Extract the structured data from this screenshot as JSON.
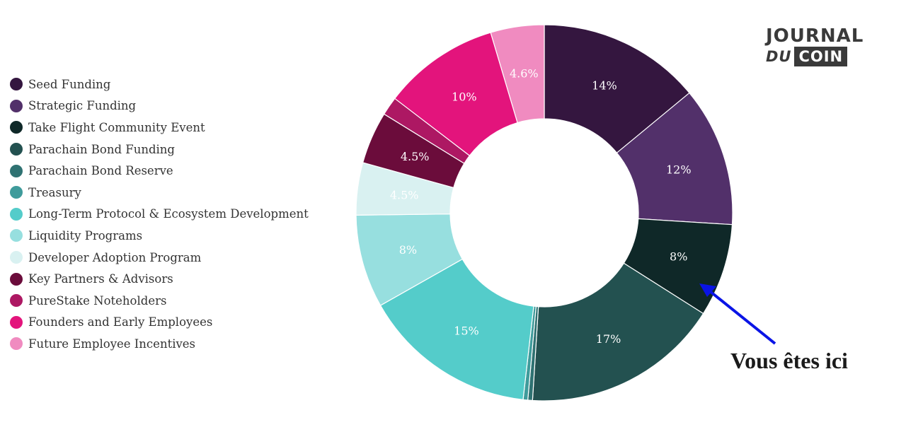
{
  "chart_data": {
    "type": "pie",
    "donut": true,
    "title": "",
    "legend_position": "left",
    "slices": [
      {
        "name": "Seed Funding",
        "value": 14,
        "label": "14%",
        "color": "#34163f"
      },
      {
        "name": "Strategic Funding",
        "value": 12,
        "label": "12%",
        "color": "#52306a"
      },
      {
        "name": "Take Flight Community Event",
        "value": 8,
        "label": "8%",
        "color": "#0f2828"
      },
      {
        "name": "Parachain Bond Funding",
        "value": 17,
        "label": "17%",
        "color": "#235150"
      },
      {
        "name": "Parachain Bond Reserve",
        "value": 0.4,
        "label": "",
        "color": "#2f7272"
      },
      {
        "name": "Treasury",
        "value": 0.4,
        "label": "",
        "color": "#3f9b9b"
      },
      {
        "name": "Long-Term Protocol & Ecosystem Development",
        "value": 15,
        "label": "15%",
        "color": "#54ccca"
      },
      {
        "name": "Liquidity Programs",
        "value": 8,
        "label": "8%",
        "color": "#97dfdf"
      },
      {
        "name": "Developer Adoption Program",
        "value": 4.5,
        "label": "4.5%",
        "color": "#d9f1f1"
      },
      {
        "name": "Key Partners & Advisors",
        "value": 4.5,
        "label": "4.5%",
        "color": "#6b0c3b"
      },
      {
        "name": "PureStake Noteholders",
        "value": 1.6,
        "label": "",
        "color": "#ad1863"
      },
      {
        "name": "Founders and Early Employees",
        "value": 10,
        "label": "10%",
        "color": "#e3147c"
      },
      {
        "name": "Future Employee Incentives",
        "value": 4.6,
        "label": "4.6%",
        "color": "#f08bc0"
      }
    ]
  },
  "annotation": {
    "text": "Vous êtes ici",
    "target": "Take Flight Community Event",
    "arrow_color": "#0a14e6"
  },
  "logo": {
    "line1": "JOURNAL",
    "line2a": "DU",
    "line2b": "COIN"
  }
}
